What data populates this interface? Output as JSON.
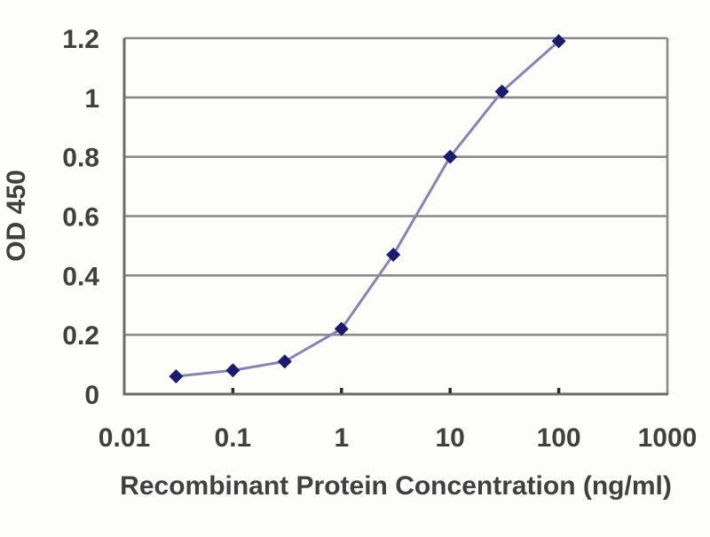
{
  "chart_data": {
    "type": "line",
    "title": "",
    "xlabel": "Recombinant Protein Concentration (ng/ml)",
    "ylabel": "OD 450",
    "x_scale": "log",
    "xlim": [
      0.01,
      1000
    ],
    "ylim": [
      0,
      1.2
    ],
    "x_ticks": [
      0.01,
      0.1,
      1,
      10,
      100,
      1000
    ],
    "x_tick_labels": [
      "0.01",
      "0.1",
      "1",
      "10",
      "100",
      "1000"
    ],
    "y_ticks": [
      0,
      0.2,
      0.4,
      0.6,
      0.8,
      1,
      1.2
    ],
    "y_tick_labels": [
      "0",
      "0.2",
      "0.4",
      "0.6",
      "0.8",
      "1",
      "1.2"
    ],
    "grid": "horizontal",
    "legend": "none",
    "series": [
      {
        "name": "OD 450",
        "x": [
          0.03,
          0.1,
          0.3,
          1,
          3,
          10,
          30,
          100
        ],
        "y": [
          0.06,
          0.08,
          0.11,
          0.22,
          0.47,
          0.8,
          1.02,
          1.19
        ],
        "marker": "diamond",
        "line_color": "#8585b3",
        "marker_color": "#1b1b6f"
      }
    ]
  },
  "colors": {
    "background": "#fdfdfa",
    "grid": "#8a8a8a",
    "axis": "#6b6b6b",
    "tick_mark": "#2e2e2e",
    "text": "#404040"
  }
}
